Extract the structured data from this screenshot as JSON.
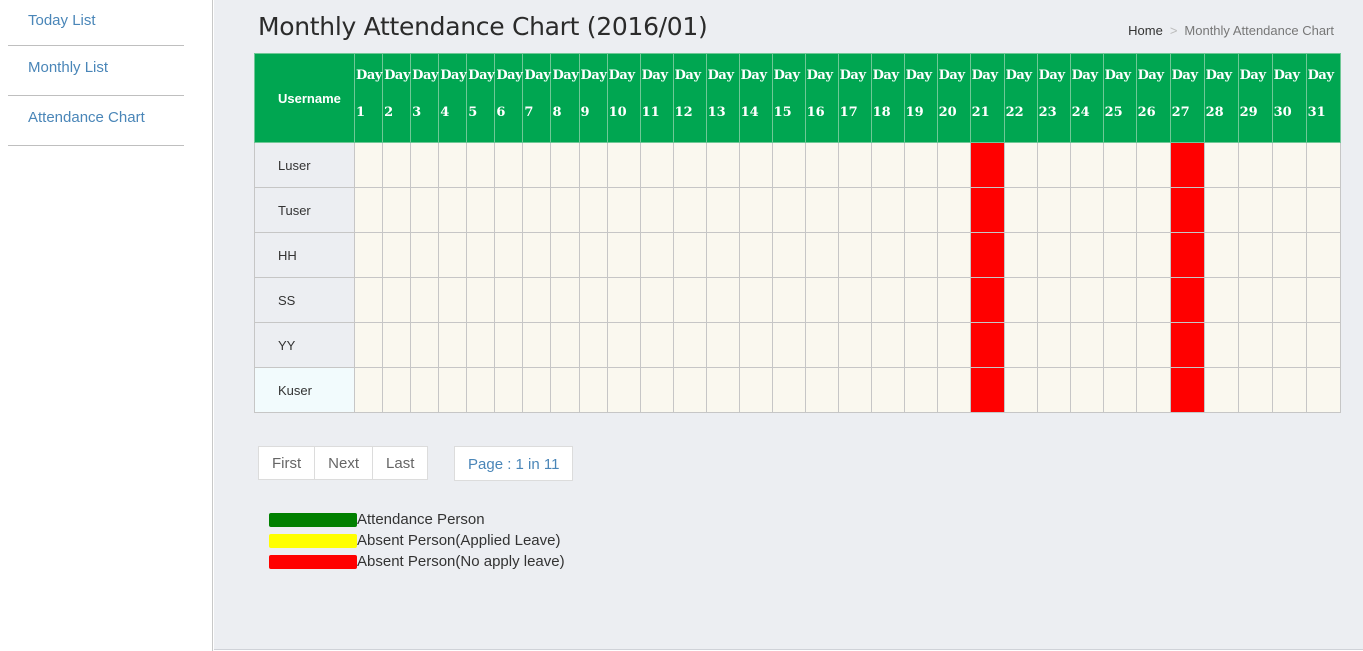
{
  "sidebar": {
    "items": [
      {
        "label": "Today List"
      },
      {
        "label": "Monthly List"
      },
      {
        "label": "Attendance Chart"
      }
    ]
  },
  "header": {
    "title": "Monthly Attendance Chart (2016/01)",
    "breadcrumb": {
      "home": "Home",
      "separator": ">",
      "current": "Monthly Attendance Chart"
    }
  },
  "table": {
    "username_header": "Username",
    "day_prefix": "Day",
    "days": [
      1,
      2,
      3,
      4,
      5,
      6,
      7,
      8,
      9,
      10,
      11,
      12,
      13,
      14,
      15,
      16,
      17,
      18,
      19,
      20,
      21,
      22,
      23,
      24,
      25,
      26,
      27,
      28,
      29,
      30,
      31
    ],
    "rows": [
      {
        "name": "Luser",
        "absent_no_leave_days": [
          21,
          27
        ]
      },
      {
        "name": "Tuser",
        "absent_no_leave_days": [
          21,
          27
        ]
      },
      {
        "name": "HH",
        "absent_no_leave_days": [
          21,
          27
        ]
      },
      {
        "name": "SS",
        "absent_no_leave_days": [
          21,
          27
        ]
      },
      {
        "name": "YY",
        "absent_no_leave_days": [
          21,
          27
        ]
      },
      {
        "name": "Kuser",
        "absent_no_leave_days": [
          21,
          27
        ]
      }
    ]
  },
  "pagination": {
    "first_label": "First",
    "next_label": "Next",
    "last_label": "Last",
    "page_info": "Page : 1 in 11"
  },
  "legend": [
    {
      "color": "#008000",
      "label": "Attendance Person"
    },
    {
      "color": "#ffff00",
      "label": "Absent Person(Applied Leave)"
    },
    {
      "color": "#ff0000",
      "label": "Absent Person(No apply leave)"
    }
  ],
  "colors": {
    "header_green": "#00a651",
    "absent_no_leave": "#ff0000",
    "cell_background": "#faf8ef",
    "link_blue": "#4a86b8"
  }
}
